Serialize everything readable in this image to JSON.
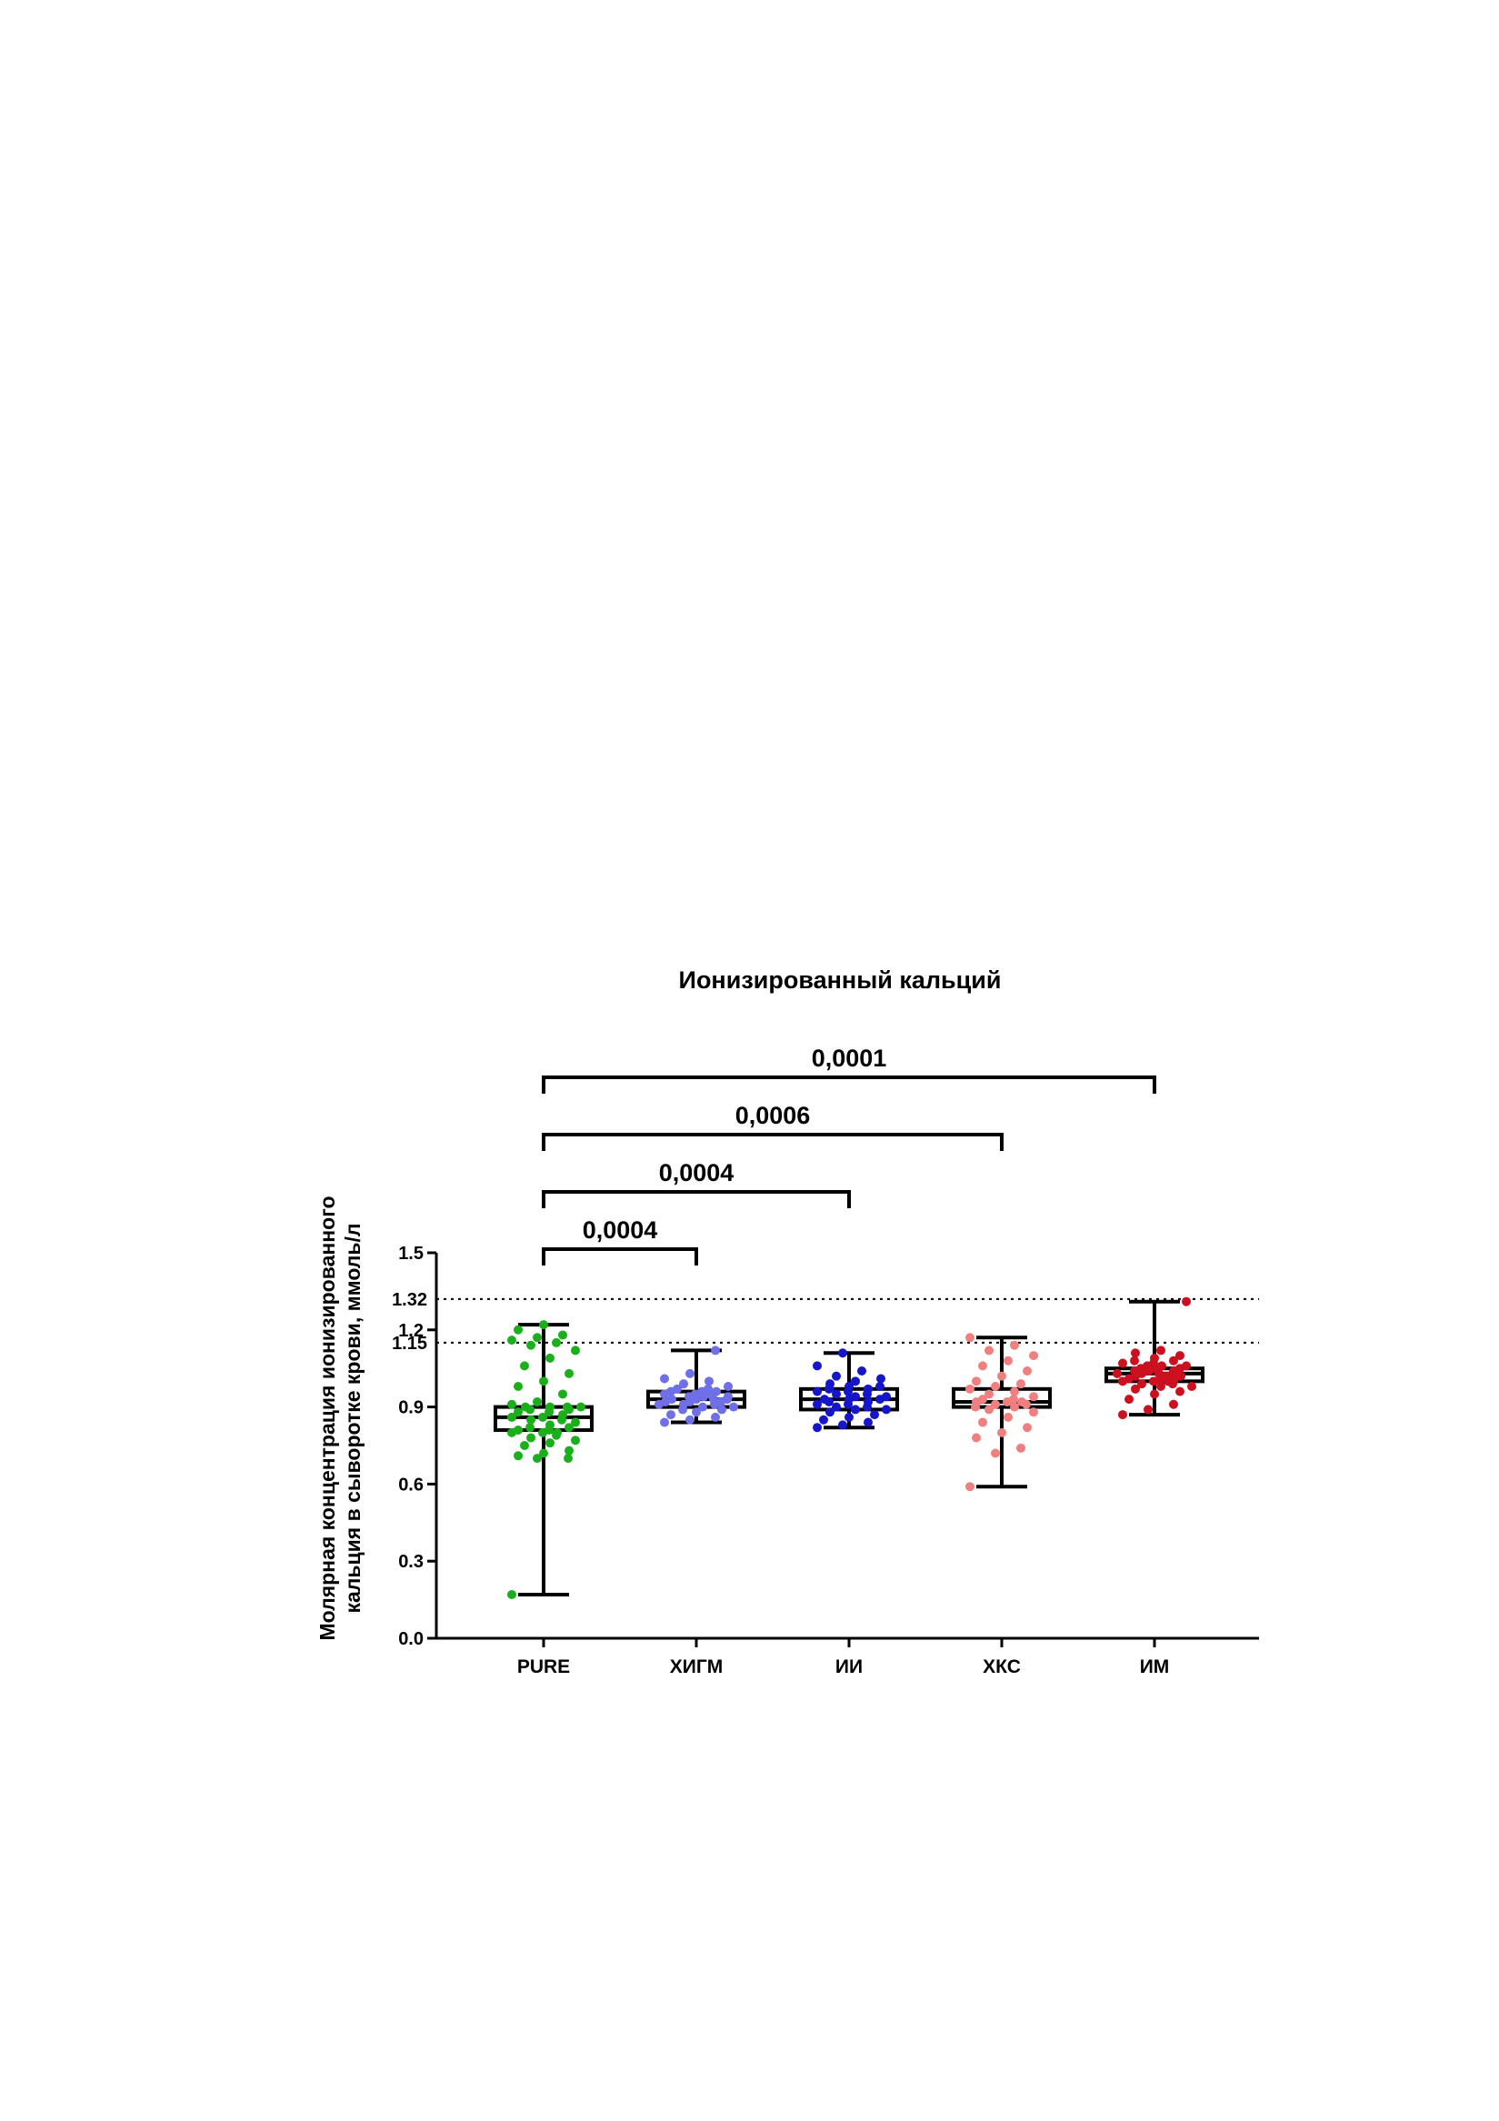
{
  "chart_data": {
    "type": "box",
    "title": "Ионизированный кальций",
    "ylabel_line1": "Молярная концентрация ионизированного",
    "ylabel_line2": "кальция в сыворотке крови, ммоль/л",
    "xlabel": "",
    "ylim": [
      0,
      1.5
    ],
    "yticks": [
      "0.0",
      "0.3",
      "0.6",
      "0.9",
      "1.2",
      "1.5"
    ],
    "reference_lines": [
      {
        "value": 1.32,
        "label": "1.32",
        "style": "dotted"
      },
      {
        "value": 1.15,
        "label": "1.15",
        "style": "dotted"
      }
    ],
    "categories": [
      "PURE",
      "ХИГМ",
      "ИИ",
      "ХКС",
      "ИМ"
    ],
    "series": [
      {
        "category": "PURE",
        "color": "#1bb01b",
        "min": 0.17,
        "q1": 0.81,
        "median": 0.86,
        "q3": 0.9,
        "max": 1.22,
        "points": [
          0.17,
          0.7,
          0.7,
          0.71,
          0.72,
          0.73,
          0.75,
          0.76,
          0.77,
          0.78,
          0.79,
          0.8,
          0.8,
          0.8,
          0.81,
          0.81,
          0.82,
          0.82,
          0.83,
          0.84,
          0.85,
          0.85,
          0.86,
          0.86,
          0.87,
          0.88,
          0.88,
          0.89,
          0.89,
          0.9,
          0.9,
          0.9,
          0.9,
          0.91,
          0.92,
          0.95,
          0.98,
          1.0,
          1.03,
          1.06,
          1.09,
          1.12,
          1.14,
          1.15,
          1.16,
          1.17,
          1.18,
          1.2,
          1.22
        ]
      },
      {
        "category": "ХИГМ",
        "color": "#6f6fe8",
        "min": 0.84,
        "q1": 0.9,
        "median": 0.93,
        "q3": 0.96,
        "max": 1.12,
        "points": [
          0.84,
          0.85,
          0.86,
          0.87,
          0.88,
          0.89,
          0.89,
          0.9,
          0.9,
          0.91,
          0.91,
          0.91,
          0.92,
          0.92,
          0.92,
          0.93,
          0.93,
          0.93,
          0.93,
          0.94,
          0.94,
          0.94,
          0.95,
          0.95,
          0.95,
          0.96,
          0.96,
          0.96,
          0.97,
          0.97,
          0.98,
          0.99,
          1.0,
          1.01,
          1.03,
          1.12
        ]
      },
      {
        "category": "ИИ",
        "color": "#1515cc",
        "min": 0.82,
        "q1": 0.89,
        "median": 0.93,
        "q3": 0.97,
        "max": 1.11,
        "points": [
          0.82,
          0.83,
          0.84,
          0.85,
          0.86,
          0.87,
          0.88,
          0.89,
          0.89,
          0.9,
          0.9,
          0.91,
          0.91,
          0.92,
          0.92,
          0.93,
          0.93,
          0.93,
          0.94,
          0.94,
          0.95,
          0.95,
          0.96,
          0.96,
          0.97,
          0.97,
          0.98,
          0.98,
          0.99,
          1.0,
          1.01,
          1.02,
          1.04,
          1.06,
          1.11
        ]
      },
      {
        "category": "ХКС",
        "color": "#f08080",
        "min": 0.59,
        "q1": 0.9,
        "median": 0.92,
        "q3": 0.97,
        "max": 1.17,
        "points": [
          0.59,
          0.72,
          0.74,
          0.78,
          0.8,
          0.82,
          0.84,
          0.86,
          0.88,
          0.89,
          0.9,
          0.9,
          0.91,
          0.91,
          0.92,
          0.92,
          0.92,
          0.93,
          0.93,
          0.94,
          0.95,
          0.96,
          0.97,
          0.98,
          0.99,
          1.0,
          1.02,
          1.04,
          1.06,
          1.08,
          1.1,
          1.12,
          1.14,
          1.17
        ]
      },
      {
        "category": "ИМ",
        "color": "#cc1020",
        "min": 0.87,
        "q1": 1.0,
        "median": 1.03,
        "q3": 1.05,
        "max": 1.31,
        "points": [
          0.87,
          0.89,
          0.91,
          0.93,
          0.95,
          0.96,
          0.97,
          0.98,
          0.98,
          0.99,
          0.99,
          1.0,
          1.0,
          1.0,
          1.01,
          1.01,
          1.01,
          1.02,
          1.02,
          1.02,
          1.03,
          1.03,
          1.03,
          1.03,
          1.04,
          1.04,
          1.04,
          1.05,
          1.05,
          1.05,
          1.06,
          1.06,
          1.06,
          1.07,
          1.07,
          1.08,
          1.08,
          1.09,
          1.1,
          1.11,
          1.12,
          1.31
        ]
      }
    ],
    "comparisons": [
      {
        "from": "PURE",
        "to": "ХИГМ",
        "p_value": "0,0004"
      },
      {
        "from": "PURE",
        "to": "ИИ",
        "p_value": "0,0004"
      },
      {
        "from": "PURE",
        "to": "ХКС",
        "p_value": "0,0006"
      },
      {
        "from": "PURE",
        "to": "ИМ",
        "p_value": "0,0001"
      }
    ]
  }
}
